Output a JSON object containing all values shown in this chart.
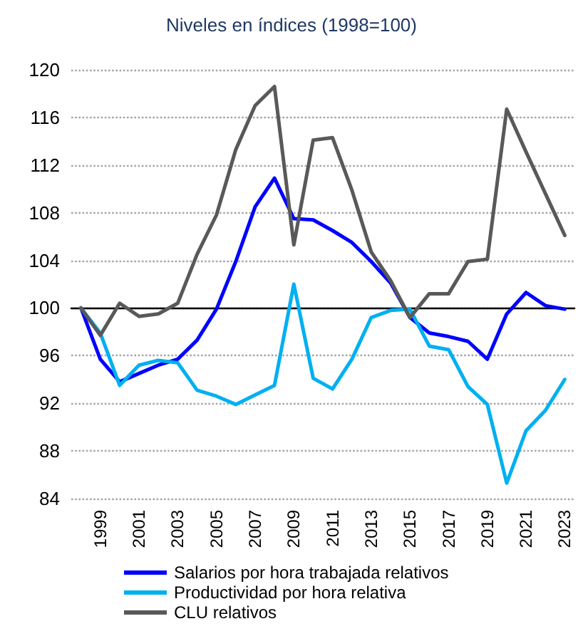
{
  "chart_data": {
    "type": "line",
    "title": "Niveles en índices (1998=100)",
    "categories": [
      null,
      "1999",
      null,
      "2001",
      null,
      "2003",
      null,
      "2005",
      null,
      "2007",
      null,
      "2009",
      null,
      "2011",
      null,
      "2013",
      null,
      "2015",
      null,
      "2017",
      null,
      "2019",
      null,
      "2021",
      null,
      "2023"
    ],
    "series": [
      {
        "name": "Salarios por hora trabajada relativos",
        "color": "#0000ff",
        "values": [
          100,
          95.7,
          93.8,
          94.5,
          95.2,
          95.7,
          97.3,
          99.9,
          103.9,
          108.5,
          110.9,
          107.5,
          107.4,
          106.5,
          105.5,
          103.9,
          102.1,
          99.2,
          97.9,
          97.6,
          97.2,
          95.7,
          99.5,
          101.3,
          100.2,
          99.9
        ]
      },
      {
        "name": "Productividad por hora relativa",
        "color": "#00b0f0",
        "values": [
          100,
          97.9,
          93.5,
          95.2,
          95.6,
          95.4,
          93.1,
          92.6,
          91.9,
          92.7,
          93.5,
          102.0,
          94.1,
          93.2,
          95.7,
          99.2,
          99.8,
          99.9,
          96.8,
          96.5,
          93.4,
          91.9,
          85.3,
          89.7,
          91.4,
          94.0
        ]
      },
      {
        "name": "CLU relativos",
        "color": "#595959",
        "values": [
          100,
          97.7,
          100.4,
          99.3,
          99.5,
          100.4,
          104.5,
          107.8,
          113.3,
          117.0,
          118.6,
          105.3,
          114.1,
          114.3,
          109.9,
          104.7,
          102.3,
          99.2,
          101.2,
          101.2,
          103.9,
          104.1,
          116.7,
          113.1,
          109.6,
          106.1
        ]
      }
    ],
    "ylim": [
      84,
      120
    ],
    "yticks": [
      84,
      88,
      92,
      96,
      100,
      104,
      108,
      112,
      116,
      120
    ],
    "ref_lines": [
      {
        "axis": "y",
        "value": 100,
        "color": "#000000"
      }
    ],
    "grid": "y",
    "legend": "bottom",
    "marker": "none",
    "line_style": "solid"
  }
}
